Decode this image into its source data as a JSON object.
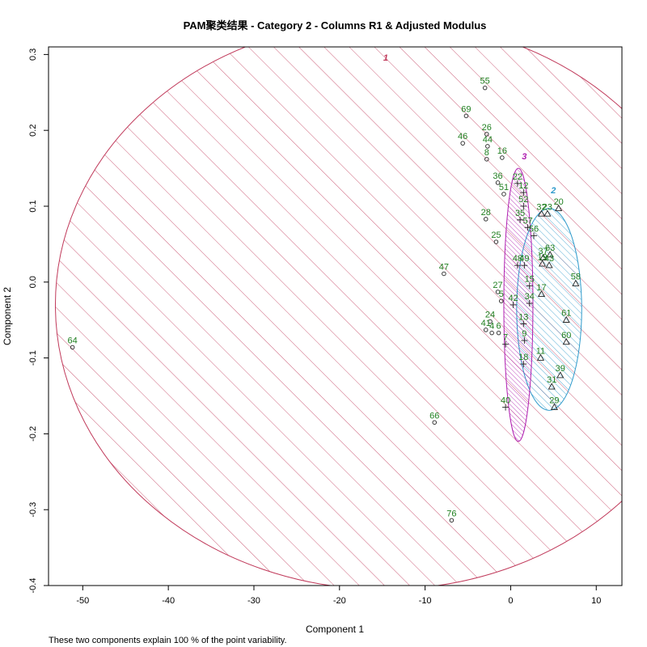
{
  "chart_data": {
    "type": "scatter",
    "title": "PAM聚类结果 - Category  2  - Columns  R1  &  Adjusted Modulus",
    "xlabel": "Component 1",
    "ylabel": "Component 2",
    "footnote": "These two components explain 100 % of the point variability.",
    "xlim": [
      -54,
      13
    ],
    "ylim": [
      -0.4,
      0.31
    ],
    "xticks": [
      -50,
      -40,
      -30,
      -20,
      -10,
      0,
      10
    ],
    "yticks": [
      -0.4,
      -0.3,
      -0.2,
      -0.1,
      0.0,
      0.1,
      0.2,
      0.3
    ],
    "ytick_labels": [
      "-0.4",
      "-0.3",
      "-0.2",
      "-0.1",
      "0.0",
      "0.1",
      "0.2",
      "0.3"
    ],
    "colors": {
      "points": "#222222",
      "labels": "#1f7f1f",
      "cluster1": "#c0395a",
      "cluster2": "#2e9acb",
      "cluster3": "#b020b0"
    },
    "clusters": [
      {
        "label": "1",
        "center": [
          -14.8,
          -0.03
        ],
        "rx": 38.4,
        "ry": 0.375,
        "color": "#c0395a",
        "label_pos": [
          -14.6,
          0.292
        ]
      },
      {
        "label": "2",
        "center": [
          4.5,
          -0.036
        ],
        "rx": 3.8,
        "ry": 0.133,
        "color": "#2e9acb",
        "label_pos": [
          5.0,
          0.117
        ]
      },
      {
        "label": "3",
        "center": [
          0.9,
          -0.03
        ],
        "rx": 1.7,
        "ry": 0.18,
        "color": "#b020b0",
        "label_pos": [
          1.6,
          0.162
        ]
      }
    ],
    "series": [
      {
        "name": "1",
        "marker": "circle",
        "points": [
          {
            "label": "64",
            "x": -51.2,
            "y": -0.086
          },
          {
            "label": "55",
            "x": -3.0,
            "y": 0.256
          },
          {
            "label": "69",
            "x": -5.2,
            "y": 0.219
          },
          {
            "label": "26",
            "x": -2.8,
            "y": 0.195
          },
          {
            "label": "44",
            "x": -2.7,
            "y": 0.179
          },
          {
            "label": "46",
            "x": -5.6,
            "y": 0.183
          },
          {
            "label": "8",
            "x": -2.8,
            "y": 0.162
          },
          {
            "label": "16",
            "x": -1.0,
            "y": 0.164
          },
          {
            "label": "36",
            "x": -1.5,
            "y": 0.131
          },
          {
            "label": "51",
            "x": -0.8,
            "y": 0.116
          },
          {
            "label": "28",
            "x": -2.9,
            "y": 0.083
          },
          {
            "label": "25",
            "x": -1.7,
            "y": 0.053
          },
          {
            "label": "47",
            "x": -7.8,
            "y": 0.011
          },
          {
            "label": "27",
            "x": -1.5,
            "y": -0.013
          },
          {
            "label": "5",
            "x": -1.1,
            "y": -0.025
          },
          {
            "label": "24",
            "x": -2.4,
            "y": -0.052
          },
          {
            "label": "41",
            "x": -2.9,
            "y": -0.063
          },
          {
            "label": "4",
            "x": -2.2,
            "y": -0.067
          },
          {
            "label": "6",
            "x": -1.4,
            "y": -0.067
          },
          {
            "label": "66",
            "x": -8.9,
            "y": -0.185
          },
          {
            "label": "76",
            "x": -6.9,
            "y": -0.314
          }
        ]
      },
      {
        "name": "2",
        "marker": "triangle",
        "points": [
          {
            "label": "20",
            "x": 5.6,
            "y": 0.097
          },
          {
            "label": "32",
            "x": 3.6,
            "y": 0.09
          },
          {
            "label": "23",
            "x": 4.3,
            "y": 0.09
          },
          {
            "label": "63",
            "x": 4.6,
            "y": 0.036
          },
          {
            "label": "37",
            "x": 3.8,
            "y": 0.032
          },
          {
            "label": "19",
            "x": 3.7,
            "y": 0.024
          },
          {
            "label": "43",
            "x": 4.5,
            "y": 0.022
          },
          {
            "label": "58",
            "x": 7.6,
            "y": -0.002
          },
          {
            "label": "17",
            "x": 3.6,
            "y": -0.016
          },
          {
            "label": "61",
            "x": 6.5,
            "y": -0.05
          },
          {
            "label": "60",
            "x": 6.5,
            "y": -0.079
          },
          {
            "label": "11",
            "x": 3.5,
            "y": -0.1
          },
          {
            "label": "39",
            "x": 5.8,
            "y": -0.123
          },
          {
            "label": "31",
            "x": 4.8,
            "y": -0.138
          },
          {
            "label": "29",
            "x": 5.1,
            "y": -0.165
          }
        ]
      },
      {
        "name": "3",
        "marker": "plus",
        "points": [
          {
            "label": "22",
            "x": 0.8,
            "y": 0.13
          },
          {
            "label": "12",
            "x": 1.5,
            "y": 0.118
          },
          {
            "label": "52",
            "x": 1.5,
            "y": 0.1
          },
          {
            "label": "35",
            "x": 1.1,
            "y": 0.082
          },
          {
            "label": "57",
            "x": 2.0,
            "y": 0.072
          },
          {
            "label": "56",
            "x": 2.7,
            "y": 0.061
          },
          {
            "label": "48",
            "x": 0.8,
            "y": 0.022
          },
          {
            "label": "49",
            "x": 1.6,
            "y": 0.022
          },
          {
            "label": "15",
            "x": 2.2,
            "y": -0.005
          },
          {
            "label": "42",
            "x": 0.3,
            "y": -0.03
          },
          {
            "label": "34",
            "x": 2.2,
            "y": -0.028
          },
          {
            "label": "13",
            "x": 1.5,
            "y": -0.055
          },
          {
            "label": "7",
            "x": -0.6,
            "y": -0.082
          },
          {
            "label": "9",
            "x": 1.6,
            "y": -0.077
          },
          {
            "label": "18",
            "x": 1.5,
            "y": -0.108
          },
          {
            "label": "40",
            "x": -0.6,
            "y": -0.165
          }
        ]
      }
    ]
  }
}
